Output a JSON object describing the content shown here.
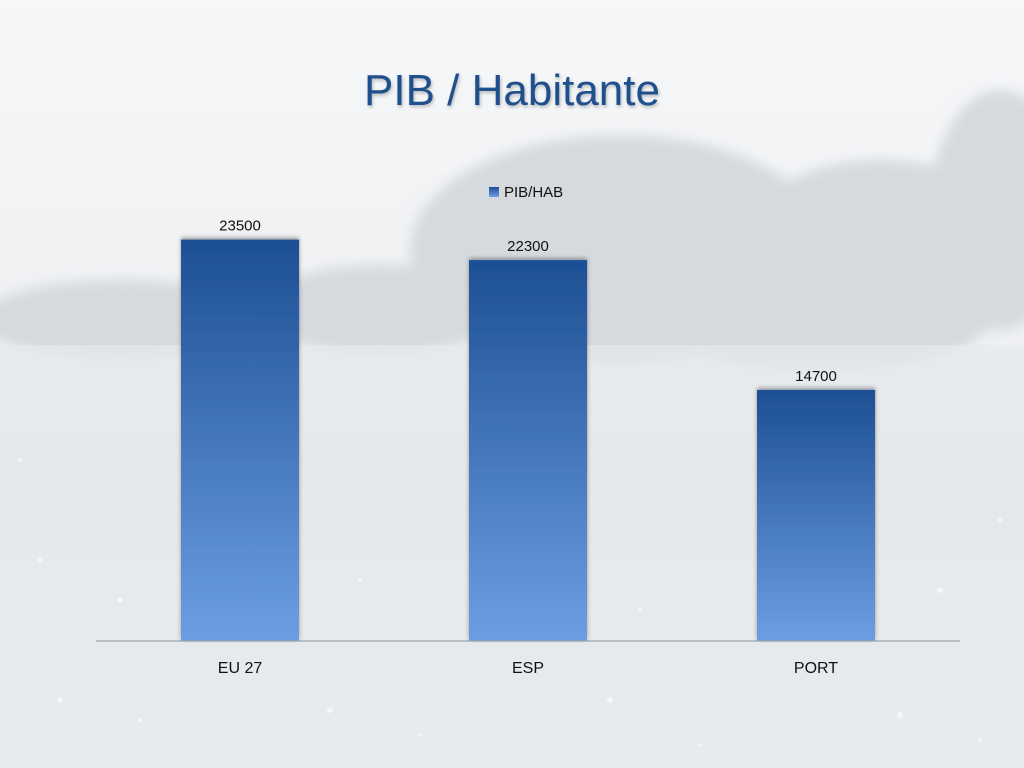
{
  "title": "PIB / Habitante",
  "colors": {
    "bar_top": "#1d4f94",
    "bar_bottom": "#6d9ee3",
    "axis": "#9aa3ad",
    "title": "#1f4f8c"
  },
  "chart_data": {
    "type": "bar",
    "title": "PIB / Habitante",
    "categories": [
      "EU 27",
      "ESP",
      "PORT"
    ],
    "series": [
      {
        "name": "PIB/HAB",
        "values": [
          23500,
          22300,
          14700
        ]
      }
    ],
    "data_labels": [
      "23500",
      "22300",
      "14700"
    ],
    "ylim": [
      0,
      25000
    ],
    "grid": false,
    "legend": "top-center"
  }
}
